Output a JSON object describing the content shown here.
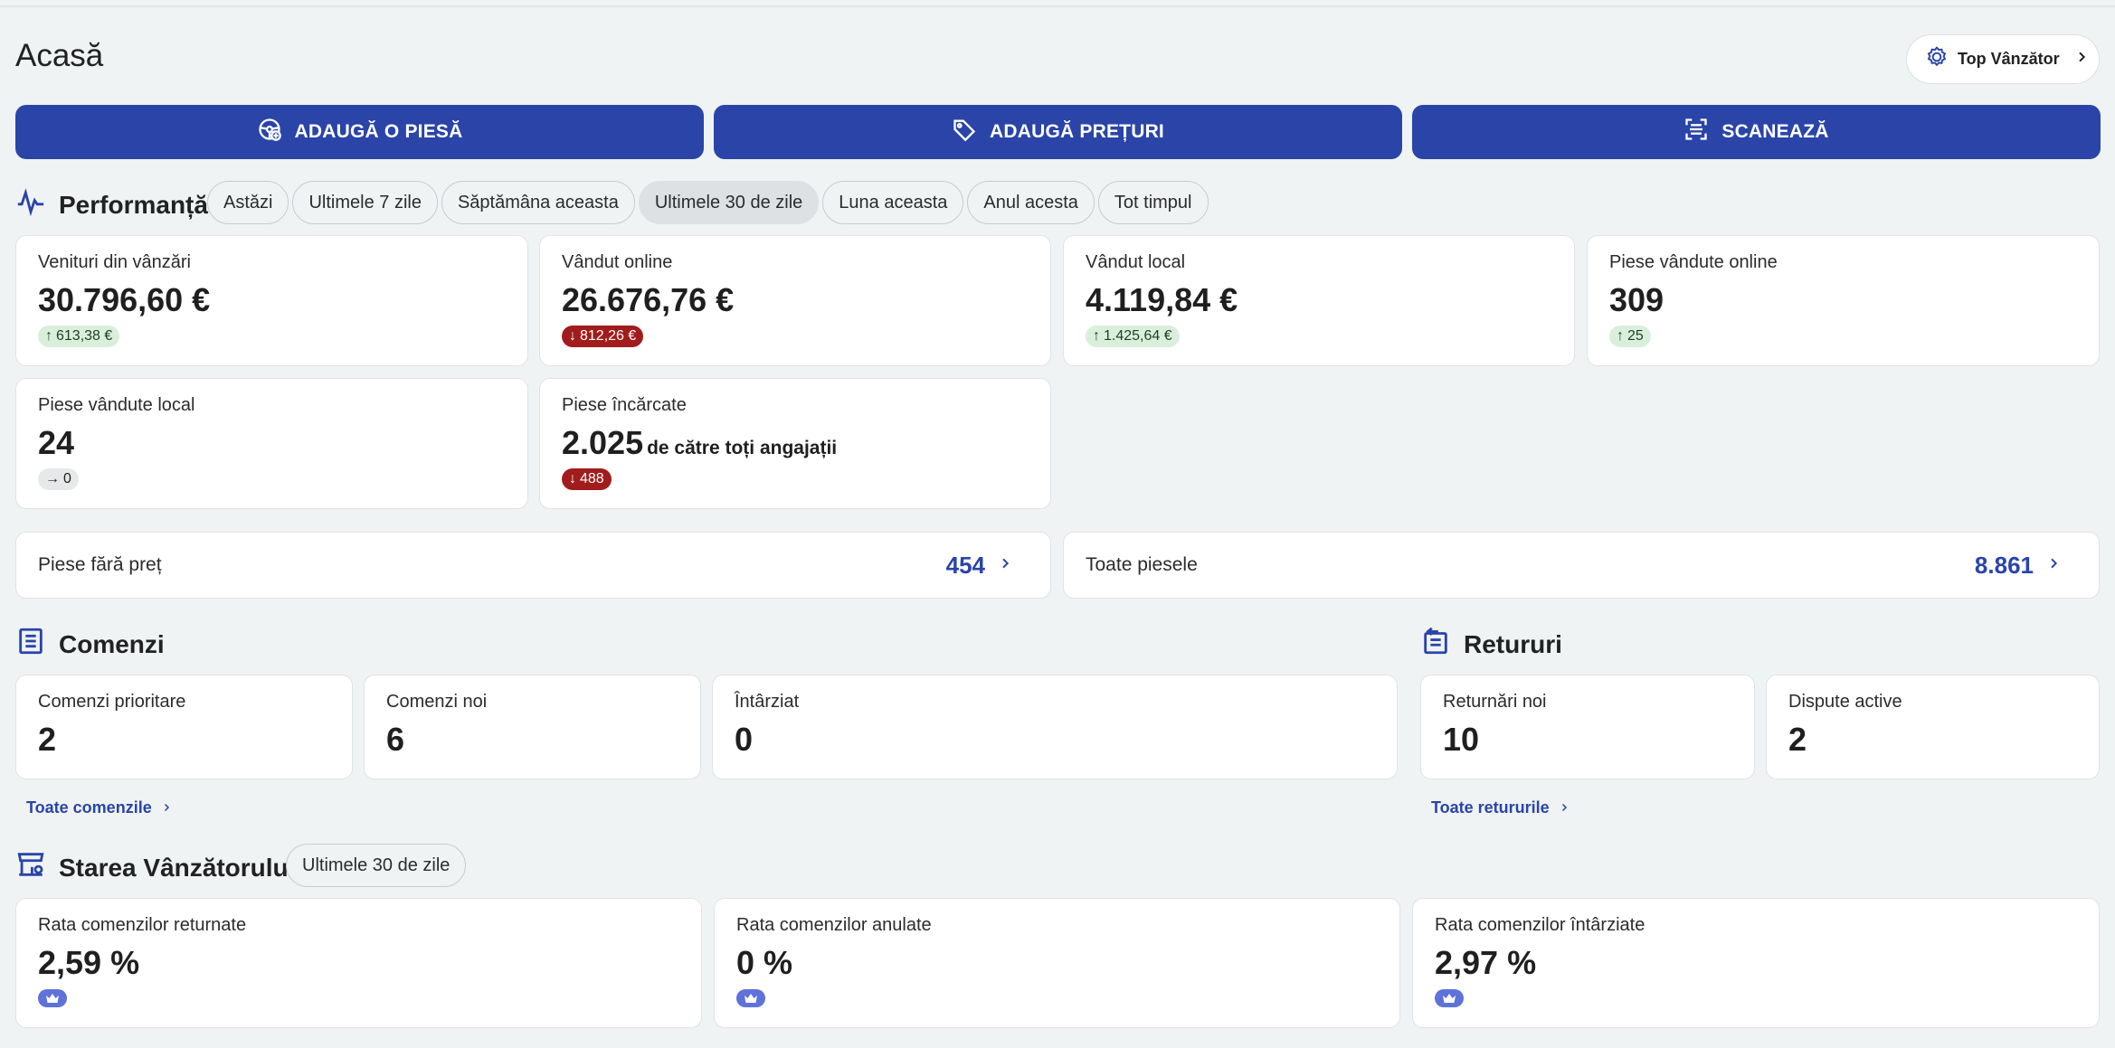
{
  "page": {
    "title": "Acasă"
  },
  "header": {
    "top_seller_label": "Top Vânzător"
  },
  "actions": {
    "add_part": "ADAUGĂ O PIESĂ",
    "add_prices": "ADAUGĂ PREȚURI",
    "scan": "SCANEAZĂ"
  },
  "performance": {
    "title": "Performanță",
    "filters": [
      "Astăzi",
      "Ultimele 7 zile",
      "Săptămâna aceasta",
      "Ultimele 30 de zile",
      "Luna aceasta",
      "Anul acesta",
      "Tot timpul"
    ],
    "active_filter": "Ultimele 30 de zile",
    "cards": [
      {
        "label": "Venituri din vânzări",
        "value": "30.796,60 €",
        "delta": "613,38 €",
        "trend": "up"
      },
      {
        "label": "Vândut online",
        "value": "26.676,76 €",
        "delta": "812,26 €",
        "trend": "down"
      },
      {
        "label": "Vândut local",
        "value": "4.119,84 €",
        "delta": "1.425,64 €",
        "trend": "up"
      },
      {
        "label": "Piese vândute online",
        "value": "309",
        "delta": "25",
        "trend": "up"
      },
      {
        "label": "Piese vândute local",
        "value": "24",
        "delta": "0",
        "trend": "flat"
      },
      {
        "label": "Piese încărcate",
        "value": "2.025",
        "suffix": "de către toți angajații",
        "delta": "488",
        "trend": "down"
      }
    ]
  },
  "inventory": {
    "unpriced_label": "Piese fără preț",
    "unpriced_count": "454",
    "all_label": "Toate piesele",
    "all_count": "8.861"
  },
  "orders": {
    "title": "Comenzi",
    "cards": [
      {
        "label": "Comenzi prioritare",
        "value": "2"
      },
      {
        "label": "Comenzi noi",
        "value": "6"
      },
      {
        "label": "Întârziat",
        "value": "0"
      }
    ],
    "all_link": "Toate comenzile"
  },
  "returns": {
    "title": "Retururi",
    "cards": [
      {
        "label": "Returnări noi",
        "value": "10"
      },
      {
        "label": "Dispute active",
        "value": "2"
      }
    ],
    "all_link": "Toate retururile"
  },
  "seller_status": {
    "title": "Starea Vânzătorului",
    "period": "Ultimele 30 de zile",
    "cards": [
      {
        "label": "Rata comenzilor returnate",
        "value": "2,59 %"
      },
      {
        "label": "Rata comenzilor anulate",
        "value": "0 %"
      },
      {
        "label": "Rata comenzilor întârziate",
        "value": "2,97 %"
      }
    ]
  },
  "colors": {
    "primary": "#2a44a8",
    "background": "#f0f3f4",
    "up_badge": "#d9efdc",
    "down_badge": "#a11c1c",
    "crown_badge": "#5f72d9"
  }
}
